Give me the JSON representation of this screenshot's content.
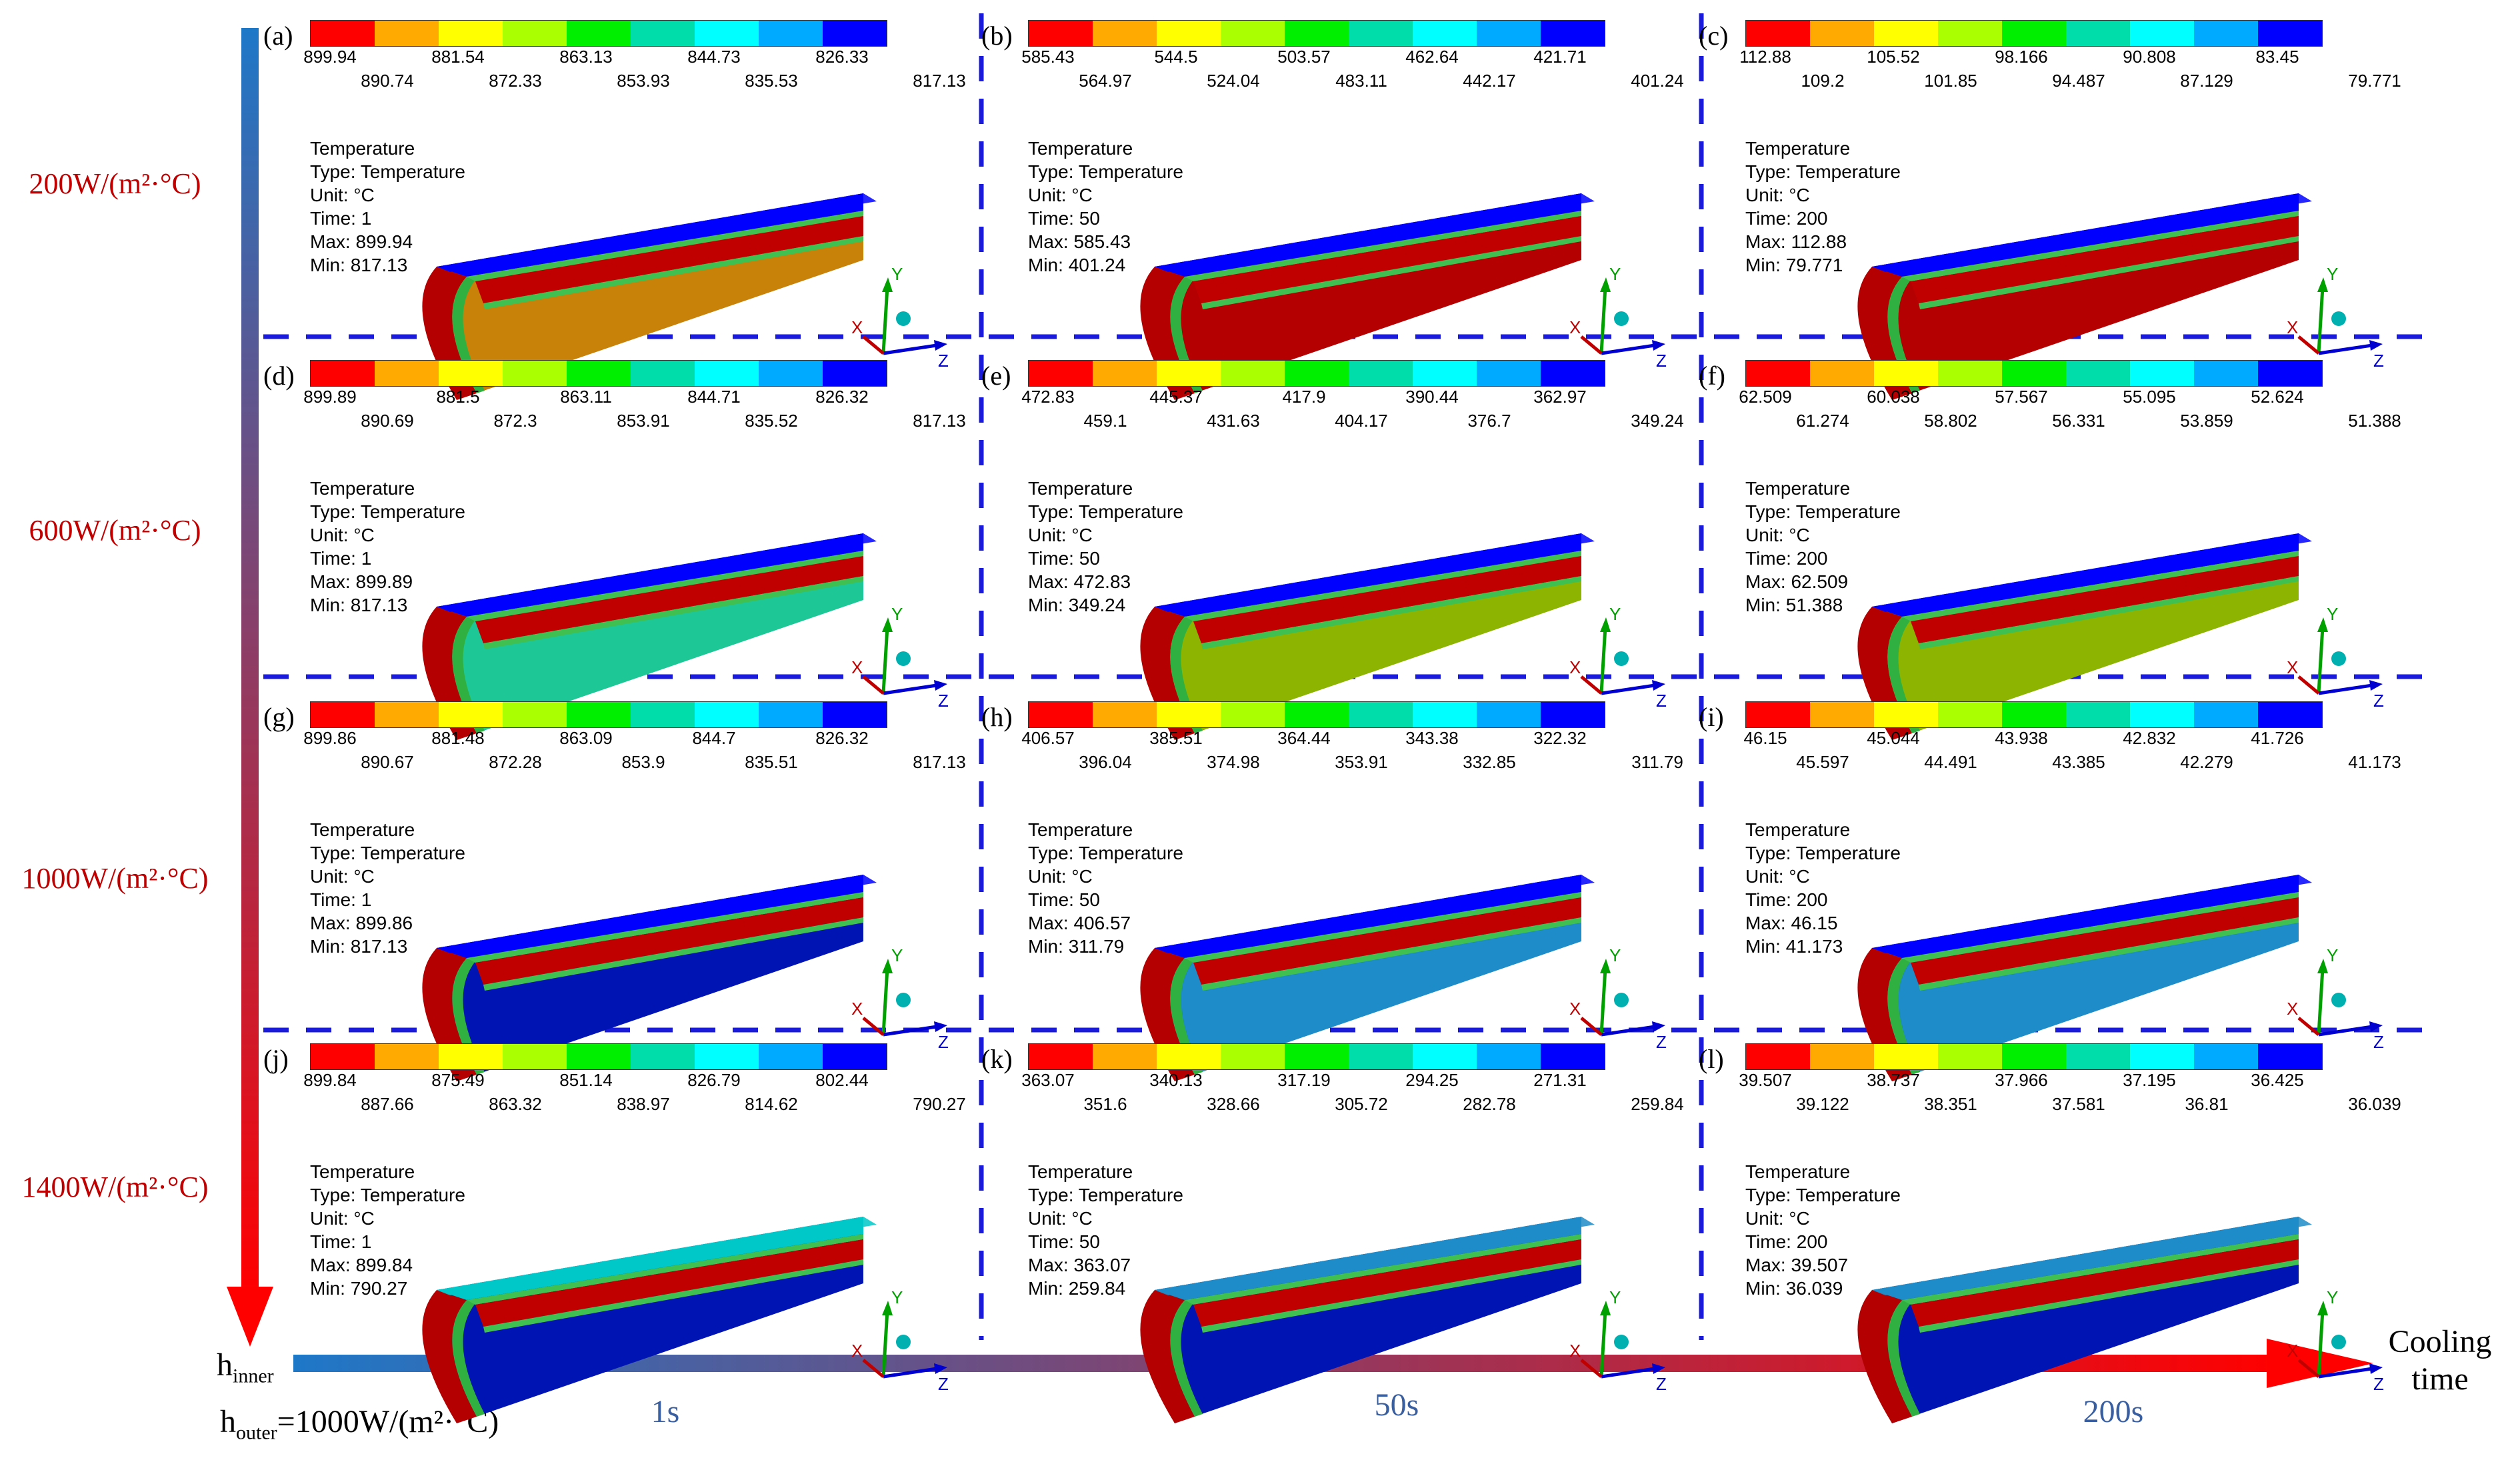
{
  "colors": {
    "scale": [
      "#ff0000",
      "#ffaa00",
      "#ffff00",
      "#aaff00",
      "#00ee00",
      "#00ddaa",
      "#00ffff",
      "#00aaff",
      "#0000ff"
    ],
    "row_label": "#c00000",
    "divider": "#1a1adc",
    "vertical_axis_gradient": [
      "#1e78c8",
      "#ff0000"
    ],
    "horizontal_axis_gradient": [
      "#1e78c8",
      "#ff0000"
    ],
    "time_label": "#3a5fa0"
  },
  "row_labels": [
    "200W/(m²·°C)",
    "600W/(m²·°C)",
    "1000W/(m²·°C)",
    "1400W/(m²·°C)"
  ],
  "axis": {
    "h_inner": "h",
    "h_inner_sub": "inner",
    "h_outer": "h",
    "h_outer_sub": "outer",
    "h_outer_value": "=1000W/(m²·°C)",
    "cooling_time_1": "Cooling",
    "cooling_time_2": "time"
  },
  "time_labels": [
    "1s",
    "50s",
    "200s"
  ],
  "triad": {
    "x": "X",
    "y": "Y",
    "z": "Z"
  },
  "info_labels": {
    "title": "Temperature",
    "type": "Type: Temperature",
    "unit": "Unit: °C",
    "time_prefix": "Time: ",
    "max_prefix": "Max: ",
    "min_prefix": "Min: "
  },
  "panels": [
    {
      "tag": "(a)",
      "top": [
        "899.94",
        "881.54",
        "863.13",
        "844.73",
        "826.33"
      ],
      "bottom": [
        "890.74",
        "872.33",
        "853.93",
        "835.53",
        "817.13"
      ],
      "time": "1",
      "max": "899.94",
      "min": "817.13",
      "core_color": "#c8820a",
      "outer_color": "#0000ff"
    },
    {
      "tag": "(b)",
      "top": [
        "585.43",
        "544.5",
        "503.57",
        "462.64",
        "421.71"
      ],
      "bottom": [
        "564.97",
        "524.04",
        "483.11",
        "442.17",
        "401.24"
      ],
      "time": "50",
      "max": "585.43",
      "min": "401.24",
      "core_color": "#b40000",
      "outer_color": "#0000ff"
    },
    {
      "tag": "(c)",
      "top": [
        "112.88",
        "105.52",
        "98.166",
        "90.808",
        "83.45"
      ],
      "bottom": [
        "109.2",
        "101.85",
        "94.487",
        "87.129",
        "79.771"
      ],
      "time": "200",
      "max": "112.88",
      "min": "79.771",
      "core_color": "#b40000",
      "outer_color": "#0000ff"
    },
    {
      "tag": "(d)",
      "top": [
        "899.89",
        "881.5",
        "863.11",
        "844.71",
        "826.32"
      ],
      "bottom": [
        "890.69",
        "872.3",
        "853.91",
        "835.52",
        "817.13"
      ],
      "time": "1",
      "max": "899.89",
      "min": "817.13",
      "core_color": "#1ec896",
      "outer_color": "#0000ff"
    },
    {
      "tag": "(e)",
      "top": [
        "472.83",
        "445.37",
        "417.9",
        "390.44",
        "362.97"
      ],
      "bottom": [
        "459.1",
        "431.63",
        "404.17",
        "376.7",
        "349.24"
      ],
      "time": "50",
      "max": "472.83",
      "min": "349.24",
      "core_color": "#8cb400",
      "outer_color": "#0000ff"
    },
    {
      "tag": "(f)",
      "top": [
        "62.509",
        "60.038",
        "57.567",
        "55.095",
        "52.624"
      ],
      "bottom": [
        "61.274",
        "58.802",
        "56.331",
        "53.859",
        "51.388"
      ],
      "time": "200",
      "max": "62.509",
      "min": "51.388",
      "core_color": "#8cb400",
      "outer_color": "#0000ff"
    },
    {
      "tag": "(g)",
      "top": [
        "899.86",
        "881.48",
        "863.09",
        "844.7",
        "826.32"
      ],
      "bottom": [
        "890.67",
        "872.28",
        "853.9",
        "835.51",
        "817.13"
      ],
      "time": "1",
      "max": "899.86",
      "min": "817.13",
      "core_color": "#0014b4",
      "outer_color": "#0000ff"
    },
    {
      "tag": "(h)",
      "top": [
        "406.57",
        "385.51",
        "364.44",
        "343.38",
        "322.32"
      ],
      "bottom": [
        "396.04",
        "374.98",
        "353.91",
        "332.85",
        "311.79"
      ],
      "time": "50",
      "max": "406.57",
      "min": "311.79",
      "core_color": "#1e8cc8",
      "outer_color": "#0000ff"
    },
    {
      "tag": "(i)",
      "top": [
        "46.15",
        "45.044",
        "43.938",
        "42.832",
        "41.726"
      ],
      "bottom": [
        "45.597",
        "44.491",
        "43.385",
        "42.279",
        "41.173"
      ],
      "time": "200",
      "max": "46.15",
      "min": "41.173",
      "core_color": "#1e8cc8",
      "outer_color": "#0000ff"
    },
    {
      "tag": "(j)",
      "top": [
        "899.84",
        "875.49",
        "851.14",
        "826.79",
        "802.44"
      ],
      "bottom": [
        "887.66",
        "863.32",
        "838.97",
        "814.62",
        "790.27"
      ],
      "time": "1",
      "max": "899.84",
      "min": "790.27",
      "core_color": "#0014b4",
      "outer_color": "#00c8c8"
    },
    {
      "tag": "(k)",
      "top": [
        "363.07",
        "340.13",
        "317.19",
        "294.25",
        "271.31"
      ],
      "bottom": [
        "351.6",
        "328.66",
        "305.72",
        "282.78",
        "259.84"
      ],
      "time": "50",
      "max": "363.07",
      "min": "259.84",
      "core_color": "#0014b4",
      "outer_color": "#1e8cc8"
    },
    {
      "tag": "(l)",
      "top": [
        "39.507",
        "38.737",
        "37.966",
        "37.195",
        "36.425"
      ],
      "bottom": [
        "39.122",
        "38.351",
        "37.581",
        "36.81",
        "36.039"
      ],
      "time": "200",
      "max": "39.507",
      "min": "36.039",
      "core_color": "#0014b4",
      "outer_color": "#1e8cc8"
    }
  ]
}
